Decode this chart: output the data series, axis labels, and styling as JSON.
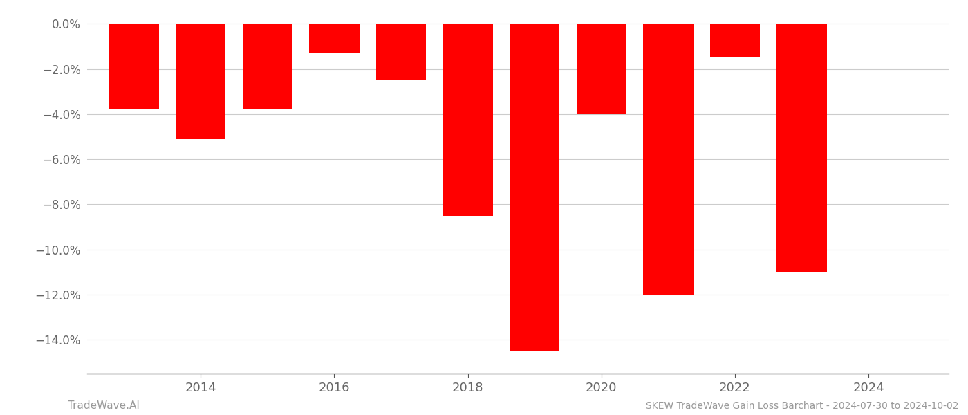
{
  "years": [
    2013,
    2014,
    2015,
    2016,
    2017,
    2018,
    2019,
    2020,
    2021,
    2022,
    2023
  ],
  "values": [
    -0.038,
    -0.051,
    -0.038,
    -0.013,
    -0.025,
    -0.085,
    -0.145,
    -0.04,
    -0.12,
    -0.015,
    -0.11
  ],
  "bar_color": "#ff0000",
  "ylim": [
    -0.155,
    0.005
  ],
  "yticks": [
    0.0,
    -0.02,
    -0.04,
    -0.06,
    -0.08,
    -0.1,
    -0.12,
    -0.14
  ],
  "ytick_labels": [
    "0.0%",
    "−2.0%",
    "−4.0%",
    "−6.0%",
    "−8.0%",
    "−10.0%",
    "−12.0%",
    "−14.0%"
  ],
  "xlim": [
    2012.3,
    2025.2
  ],
  "xticks": [
    2014,
    2016,
    2018,
    2020,
    2022,
    2024
  ],
  "title": "SKEW TradeWave Gain Loss Barchart - 2024-07-30 to 2024-10-02",
  "footer_left": "TradeWave.AI",
  "background_color": "#ffffff",
  "grid_color": "#cccccc",
  "bar_width": 0.75,
  "spine_color": "#555555"
}
